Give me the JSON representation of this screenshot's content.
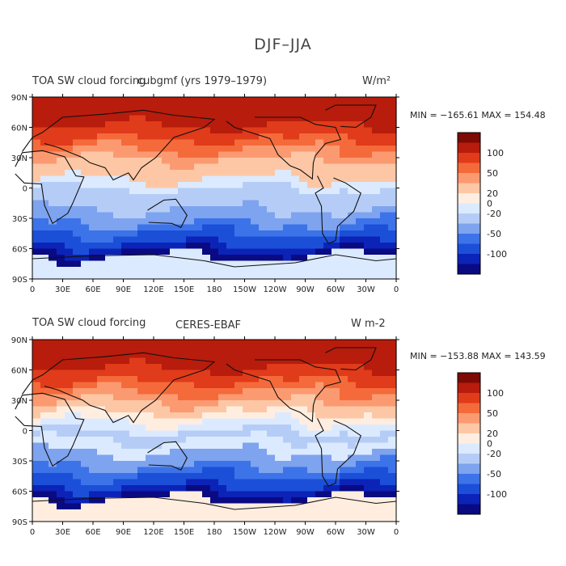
{
  "figure_title": "DJF–JJA",
  "palette": [
    "#0a0a82",
    "#0c23b8",
    "#1c4fd8",
    "#3d73e8",
    "#7ea3ef",
    "#b5cdf6",
    "#dceaff",
    "#ffeee0",
    "#fdc7a5",
    "#fb9a71",
    "#f56a3a",
    "#e03b1a",
    "#b81c0c",
    "#7d0a05"
  ],
  "colorbar_labels": [
    "100",
    "50",
    "20",
    "0",
    "-20",
    "-50",
    "-100"
  ],
  "lat_ticks": [
    "90N",
    "60N",
    "30N",
    "0",
    "30S",
    "60S",
    "90S"
  ],
  "lon_ticks": [
    "0",
    "30E",
    "60E",
    "90E",
    "120E",
    "150E",
    "180",
    "150W",
    "120W",
    "90W",
    "60W",
    "30W",
    "0"
  ],
  "panels": [
    {
      "left_label": "TOA SW cloud forcing",
      "center_label": "cubgmf (yrs 1979–1979)",
      "units": "W/m²",
      "min_max": "MIN = −165.61 MAX = 154.48",
      "map_image_name": "cubgmf-sw-cloud-forcing-difference-map"
    },
    {
      "left_label": "TOA SW cloud forcing",
      "center_label": "CERES-EBAF",
      "units": "W m-2",
      "min_max": "MIN = −153.88 MAX = 143.59",
      "map_image_name": "ceres-ebaf-sw-cloud-forcing-difference-map"
    }
  ]
}
